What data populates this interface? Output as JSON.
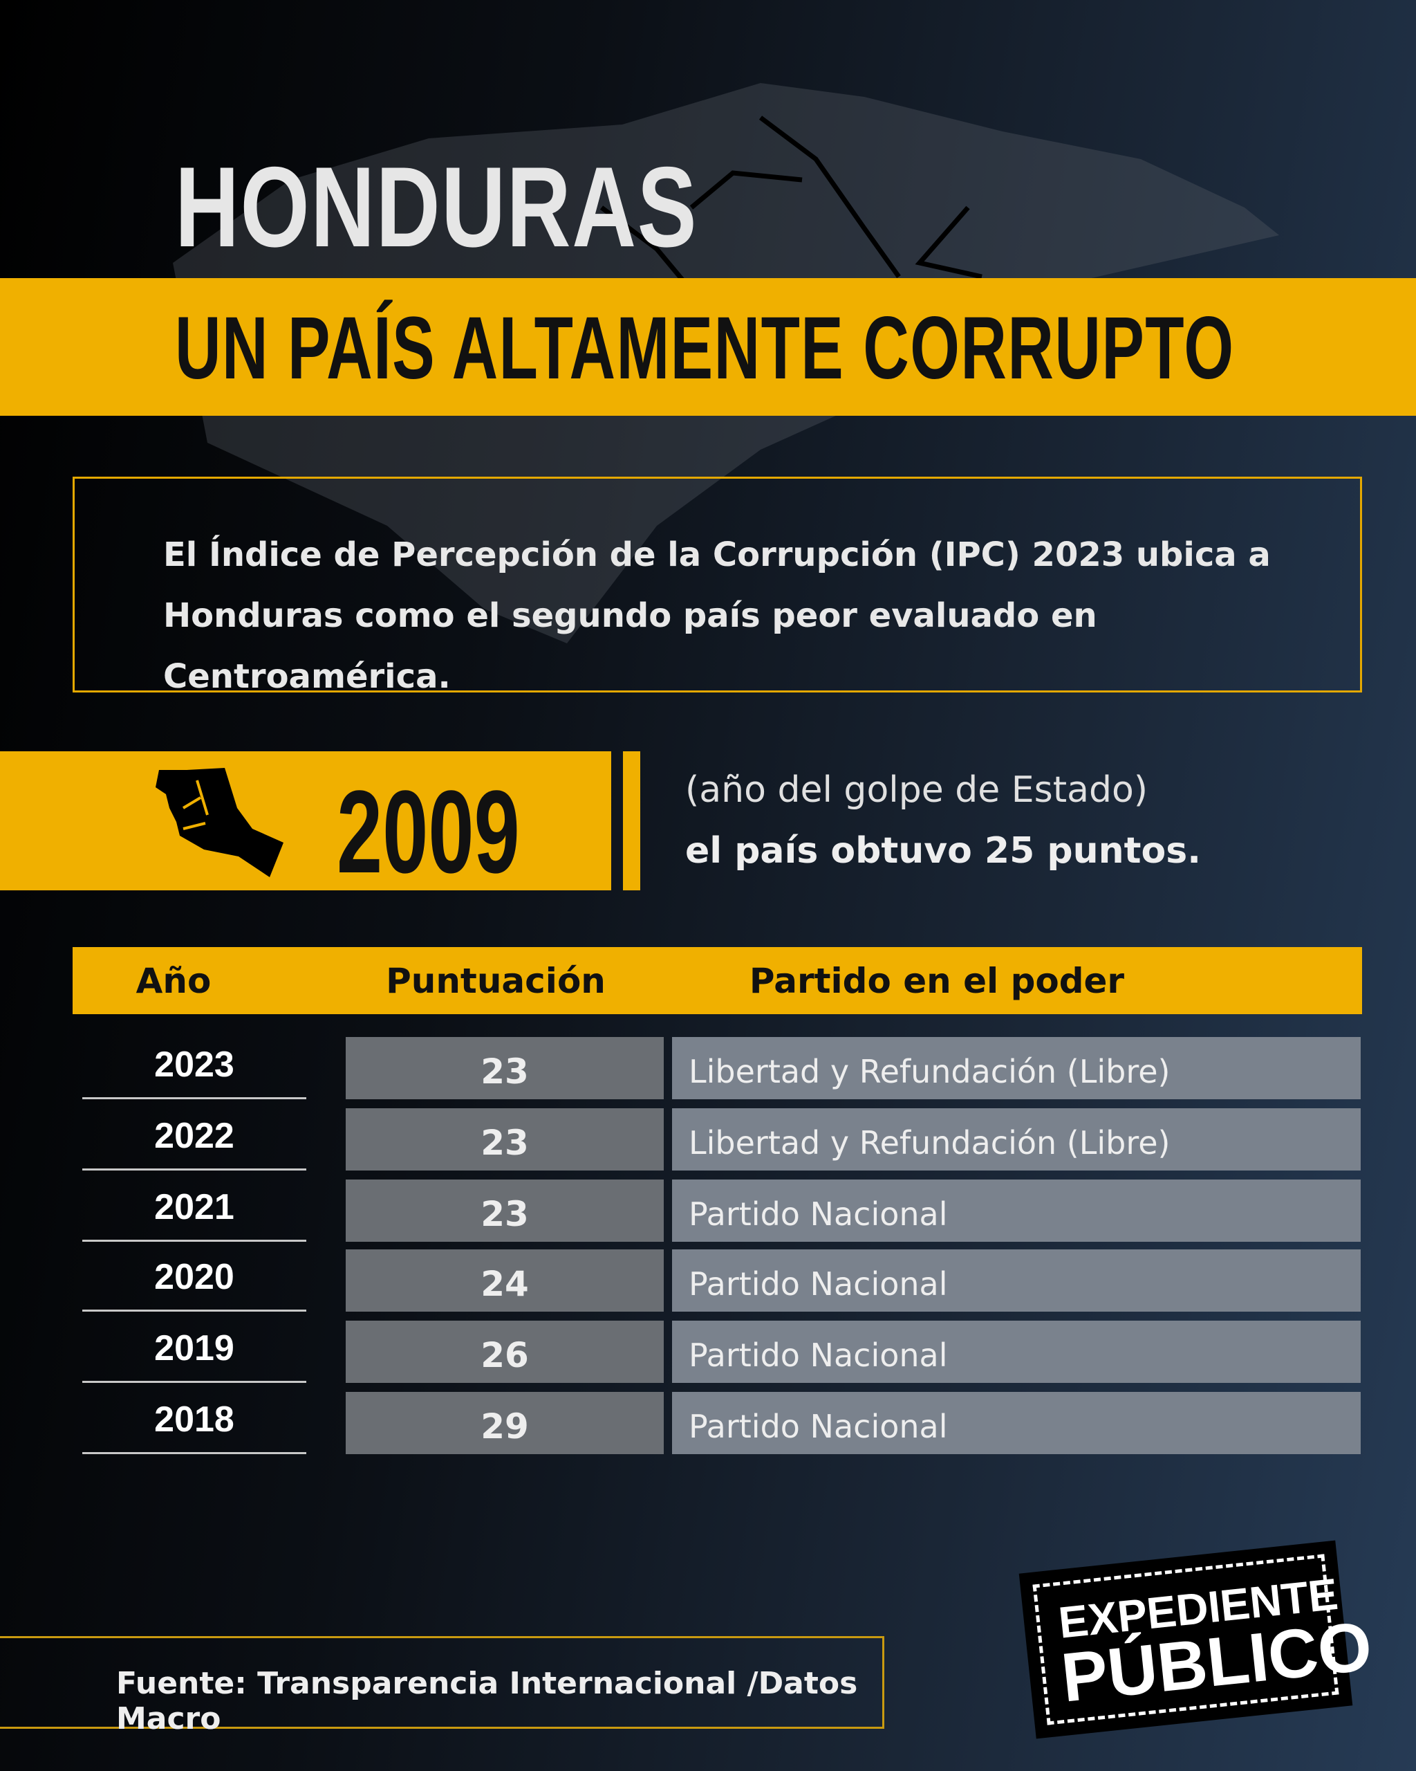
{
  "header": {
    "title": "HONDURAS",
    "subtitle": "UN PAÍS ALTAMENTE CORRUPTO"
  },
  "intro": {
    "text": "El Índice de Percepción de la Corrupción (IPC) 2023 ubica a Honduras como el segundo país peor evaluado en Centroamérica."
  },
  "highlight": {
    "icon": "raised-fist-icon",
    "year": "2009",
    "note_line1": "(año del golpe de Estado)",
    "note_line2": "el país obtuvo 25 puntos."
  },
  "table": {
    "headers": [
      "Año",
      "Puntuación",
      "Partido en el poder"
    ],
    "rows": [
      {
        "year": "2023",
        "score": "23",
        "party": "Libertad y Refundación (Libre)"
      },
      {
        "year": "2022",
        "score": "23",
        "party": "Libertad y Refundación (Libre)"
      },
      {
        "year": "2021",
        "score": "23",
        "party": "Partido Nacional"
      },
      {
        "year": "2020",
        "score": "24",
        "party": "Partido Nacional"
      },
      {
        "year": "2019",
        "score": "26",
        "party": "Partido Nacional"
      },
      {
        "year": "2018",
        "score": "29",
        "party": "Partido Nacional"
      }
    ]
  },
  "footer": {
    "source": "Fuente: Transparencia Internacional /Datos Macro"
  },
  "logo": {
    "line1": "EXPEDIENTE",
    "line2": "PÚBLICO"
  },
  "colors": {
    "accent": "#f0b000",
    "background_dark": "#000000",
    "background_light": "#263b55"
  }
}
